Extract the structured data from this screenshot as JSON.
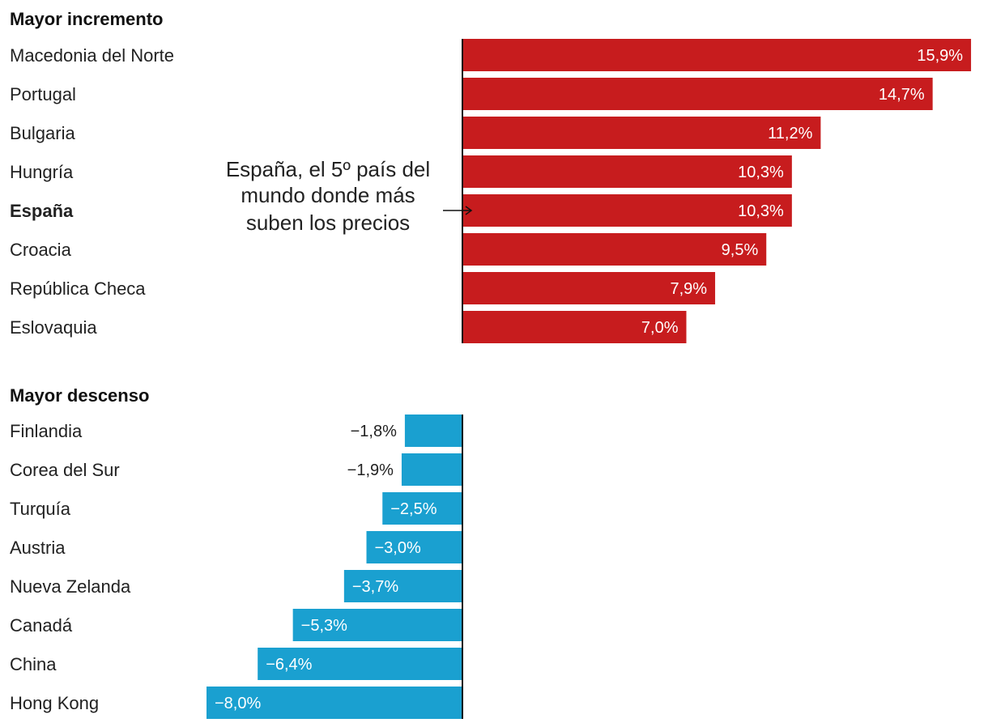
{
  "chart_data": [
    {
      "type": "bar",
      "orientation": "horizontal",
      "title": "Mayor incremento",
      "color": "#c71c1e",
      "categories": [
        "Macedonia del Norte",
        "Portugal",
        "Bulgaria",
        "Hungría",
        "España",
        "Croacia",
        "República Checa",
        "Eslovaquia"
      ],
      "values": [
        15.9,
        14.7,
        11.2,
        10.3,
        10.3,
        9.5,
        7.9,
        7.0
      ],
      "value_labels": [
        "15,9%",
        "14,7%",
        "11,2%",
        "10,3%",
        "10,3%",
        "9,5%",
        "7,9%",
        "7,0%"
      ],
      "highlight": "España",
      "annotation": {
        "target": "España",
        "lines": [
          "España, el 5º país del",
          "mundo donde más",
          "suben los precios"
        ]
      }
    },
    {
      "type": "bar",
      "orientation": "horizontal",
      "title": "Mayor descenso",
      "color": "#1aa0d0",
      "categories": [
        "Finlandia",
        "Corea del Sur",
        "Turquía",
        "Austria",
        "Nueva Zelanda",
        "Canadá",
        "China",
        "Hong Kong"
      ],
      "values": [
        -1.8,
        -1.9,
        -2.5,
        -3.0,
        -3.7,
        -5.3,
        -6.4,
        -8.0
      ],
      "value_labels": [
        "−1,8%",
        "−1,9%",
        "−2,5%",
        "−3,0%",
        "−3,7%",
        "−5,3%",
        "−6,4%",
        "−8,0%"
      ]
    }
  ]
}
